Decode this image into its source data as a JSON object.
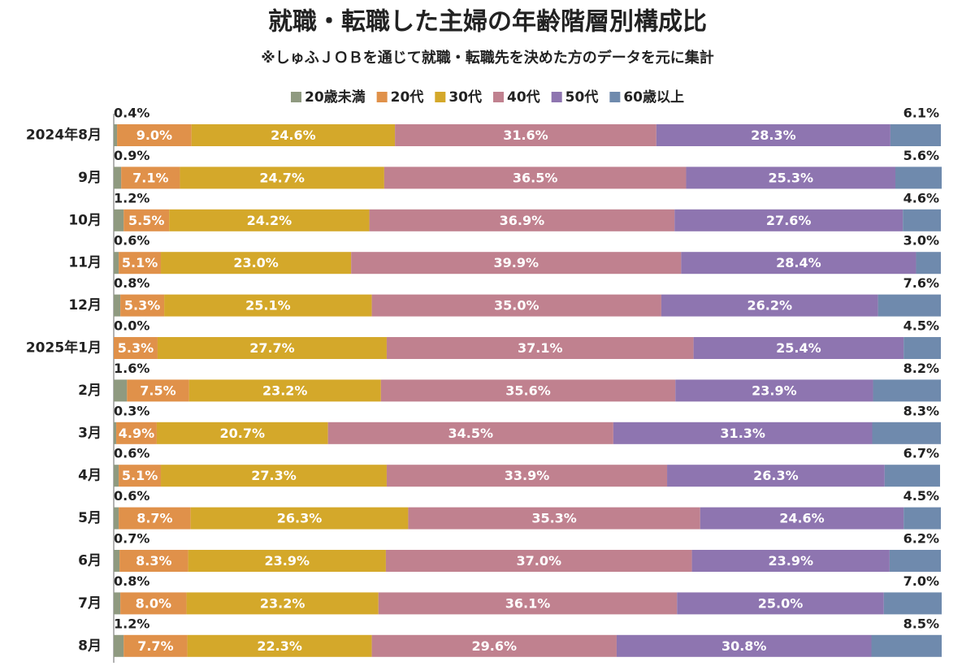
{
  "chart_data": {
    "type": "stacked-bar-horizontal",
    "title": "就職・転職した主婦の年齢階層別構成比",
    "subtitle": "※しゅふＪＯＢを通じて就職・転職先を決めた方のデータを元に集計",
    "categories": [
      "2024年8月",
      "9月",
      "10月",
      "11月",
      "12月",
      "2025年1月",
      "2月",
      "3月",
      "4月",
      "5月",
      "6月",
      "7月",
      "8月"
    ],
    "xlim": [
      0,
      100
    ],
    "series": [
      {
        "name": "20歳未満",
        "color": "#8f9a80",
        "values": [
          0.4,
          0.9,
          1.2,
          0.6,
          0.8,
          0.0,
          1.6,
          0.3,
          0.6,
          0.6,
          0.7,
          0.8,
          1.2
        ],
        "value_labels": [
          "0.4%",
          "0.9%",
          "1.2%",
          "0.6%",
          "0.8%",
          "0.0%",
          "1.6%",
          "0.3%",
          "0.6%",
          "0.6%",
          "0.7%",
          "0.8%",
          "1.2%"
        ]
      },
      {
        "name": "20代",
        "color": "#e0914a",
        "values": [
          9.0,
          7.1,
          5.5,
          5.1,
          5.3,
          5.3,
          7.5,
          4.9,
          5.1,
          8.7,
          8.3,
          8.0,
          7.7
        ],
        "value_labels": [
          "9.0%",
          "7.1%",
          "5.5%",
          "5.1%",
          "5.3%",
          "5.3%",
          "7.5%",
          "4.9%",
          "5.1%",
          "8.7%",
          "8.3%",
          "8.0%",
          "7.7%"
        ]
      },
      {
        "name": "30代",
        "color": "#d4a82a",
        "values": [
          24.6,
          24.7,
          24.2,
          23.0,
          25.1,
          27.7,
          23.2,
          20.7,
          27.3,
          26.3,
          23.9,
          23.2,
          22.3
        ],
        "value_labels": [
          "24.6%",
          "24.7%",
          "24.2%",
          "23.0%",
          "25.1%",
          "27.7%",
          "23.2%",
          "20.7%",
          "27.3%",
          "26.3%",
          "23.9%",
          "23.2%",
          "22.3%"
        ]
      },
      {
        "name": "40代",
        "color": "#c0818f",
        "values": [
          31.6,
          36.5,
          36.9,
          39.9,
          35.0,
          37.1,
          35.6,
          34.5,
          33.9,
          35.3,
          37.0,
          36.1,
          29.6
        ],
        "value_labels": [
          "31.6%",
          "36.5%",
          "36.9%",
          "39.9%",
          "35.0%",
          "37.1%",
          "35.6%",
          "34.5%",
          "33.9%",
          "35.3%",
          "37.0%",
          "36.1%",
          "29.6%"
        ]
      },
      {
        "name": "50代",
        "color": "#8e75b0",
        "values": [
          28.3,
          25.3,
          27.6,
          28.4,
          26.2,
          25.4,
          23.9,
          31.3,
          26.3,
          24.6,
          23.9,
          25.0,
          30.8
        ],
        "value_labels": [
          "28.3%",
          "25.3%",
          "27.6%",
          "28.4%",
          "26.2%",
          "25.4%",
          "23.9%",
          "31.3%",
          "26.3%",
          "24.6%",
          "23.9%",
          "25.0%",
          "30.8%"
        ]
      },
      {
        "name": "60歳以上",
        "color": "#6f8aad",
        "values": [
          6.1,
          5.6,
          4.6,
          3.0,
          7.6,
          4.5,
          8.2,
          8.3,
          6.7,
          4.5,
          6.2,
          7.0,
          8.5
        ],
        "value_labels": [
          "6.1%",
          "5.6%",
          "4.6%",
          "3.0%",
          "7.6%",
          "4.5%",
          "8.2%",
          "8.3%",
          "6.7%",
          "4.5%",
          "6.2%",
          "7.0%",
          "8.5%"
        ]
      }
    ]
  }
}
